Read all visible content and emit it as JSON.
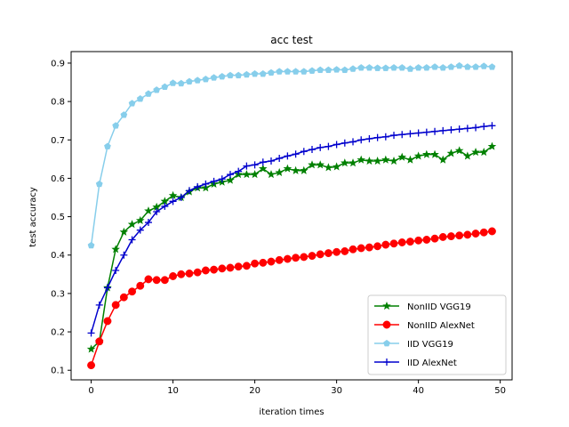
{
  "chart_data": {
    "type": "line",
    "title": "acc test",
    "xlabel": "iteration times",
    "ylabel": "test accuracy",
    "xlim": [
      -2.45,
      51.45
    ],
    "ylim": [
      0.075,
      0.93
    ],
    "xticks": [
      0,
      10,
      20,
      30,
      40,
      50
    ],
    "yticks": [
      0.1,
      0.2,
      0.3,
      0.4,
      0.5,
      0.6,
      0.7,
      0.8,
      0.9
    ],
    "grid": false,
    "legend": "lower-right",
    "x": [
      0,
      1,
      2,
      3,
      4,
      5,
      6,
      7,
      8,
      9,
      10,
      11,
      12,
      13,
      14,
      15,
      16,
      17,
      18,
      19,
      20,
      21,
      22,
      23,
      24,
      25,
      26,
      27,
      28,
      29,
      30,
      31,
      32,
      33,
      34,
      35,
      36,
      37,
      38,
      39,
      40,
      41,
      42,
      43,
      44,
      45,
      46,
      47,
      48,
      49
    ],
    "series": [
      {
        "name": "NonIID VGG19",
        "color": "#008000",
        "marker": "star",
        "values": [
          0.155,
          0.175,
          0.315,
          0.415,
          0.46,
          0.48,
          0.49,
          0.515,
          0.525,
          0.54,
          0.555,
          0.55,
          0.565,
          0.575,
          0.575,
          0.585,
          0.59,
          0.595,
          0.61,
          0.61,
          0.61,
          0.625,
          0.61,
          0.615,
          0.625,
          0.62,
          0.62,
          0.635,
          0.635,
          0.628,
          0.63,
          0.64,
          0.64,
          0.648,
          0.645,
          0.645,
          0.648,
          0.645,
          0.655,
          0.648,
          0.658,
          0.662,
          0.662,
          0.648,
          0.665,
          0.672,
          0.658,
          0.668,
          0.668,
          0.683
        ]
      },
      {
        "name": "NonIID AlexNet",
        "color": "#ff0000",
        "marker": "circle",
        "values": [
          0.113,
          0.175,
          0.228,
          0.27,
          0.29,
          0.305,
          0.32,
          0.337,
          0.335,
          0.335,
          0.345,
          0.35,
          0.352,
          0.355,
          0.36,
          0.362,
          0.365,
          0.367,
          0.37,
          0.372,
          0.378,
          0.38,
          0.383,
          0.387,
          0.39,
          0.393,
          0.395,
          0.398,
          0.402,
          0.405,
          0.408,
          0.41,
          0.415,
          0.418,
          0.42,
          0.423,
          0.427,
          0.43,
          0.433,
          0.435,
          0.438,
          0.44,
          0.443,
          0.447,
          0.449,
          0.451,
          0.453,
          0.456,
          0.459,
          0.462
        ]
      },
      {
        "name": "IID VGG19",
        "color": "#87ceeb",
        "marker": "pentagon",
        "values": [
          0.425,
          0.585,
          0.683,
          0.737,
          0.765,
          0.795,
          0.807,
          0.82,
          0.83,
          0.838,
          0.848,
          0.847,
          0.852,
          0.855,
          0.858,
          0.862,
          0.865,
          0.868,
          0.868,
          0.87,
          0.872,
          0.872,
          0.875,
          0.878,
          0.878,
          0.878,
          0.878,
          0.88,
          0.882,
          0.882,
          0.883,
          0.882,
          0.885,
          0.888,
          0.888,
          0.887,
          0.887,
          0.888,
          0.888,
          0.885,
          0.888,
          0.888,
          0.89,
          0.888,
          0.89,
          0.893,
          0.89,
          0.89,
          0.892,
          0.89
        ]
      },
      {
        "name": "IID AlexNet",
        "color": "#0000cd",
        "marker": "plus",
        "values": [
          0.197,
          0.27,
          0.315,
          0.36,
          0.4,
          0.44,
          0.465,
          0.485,
          0.513,
          0.527,
          0.54,
          0.55,
          0.568,
          0.578,
          0.585,
          0.592,
          0.598,
          0.61,
          0.618,
          0.632,
          0.635,
          0.642,
          0.645,
          0.652,
          0.658,
          0.663,
          0.67,
          0.675,
          0.68,
          0.683,
          0.688,
          0.692,
          0.695,
          0.7,
          0.703,
          0.706,
          0.708,
          0.712,
          0.714,
          0.716,
          0.718,
          0.72,
          0.722,
          0.724,
          0.726,
          0.728,
          0.73,
          0.732,
          0.735,
          0.737
        ]
      }
    ]
  }
}
